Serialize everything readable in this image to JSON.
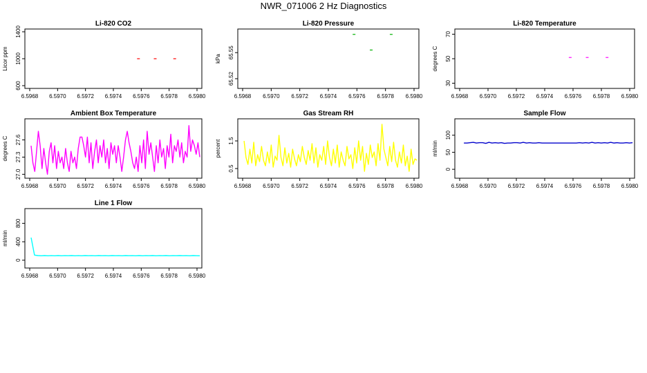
{
  "title": "NWR_071006 2 Hz Diagnostics",
  "chart_data": [
    {
      "type": "scatter",
      "title": "Li-820 CO2",
      "ylabel": "Licor ppm",
      "xticks": [
        "6.5968",
        "6.5970",
        "6.5972",
        "6.5974",
        "6.5976",
        "6.5978",
        "6.5980"
      ],
      "yticks": [
        "600",
        "1000",
        "1400"
      ],
      "xlim": [
        6.5968,
        6.598
      ],
      "ylim": [
        600,
        1400
      ],
      "color": "#ff0000",
      "series": [
        {
          "x": [
            6.59758,
            6.5977,
            6.59784
          ],
          "y": [
            1000,
            1000,
            1000
          ]
        }
      ]
    },
    {
      "type": "scatter",
      "title": "Li-820 Pressure",
      "ylabel": "kPa",
      "xticks": [
        "6.5968",
        "6.5970",
        "6.5972",
        "6.5974",
        "6.5976",
        "6.5978",
        "6.5980"
      ],
      "yticks": [
        "65.52",
        "65.55"
      ],
      "xlim": [
        6.5968,
        6.598
      ],
      "ylim": [
        65.512,
        65.574
      ],
      "color": "#00b000",
      "series": [
        {
          "x": [
            6.59758,
            6.5977,
            6.59784
          ],
          "y": [
            65.571,
            65.553,
            65.571
          ]
        }
      ]
    },
    {
      "type": "scatter",
      "title": "Li-820 Temperature",
      "ylabel": "degrees C",
      "xticks": [
        "6.5968",
        "6.5970",
        "6.5972",
        "6.5974",
        "6.5976",
        "6.5978",
        "6.5980"
      ],
      "yticks": [
        "30",
        "50",
        "70"
      ],
      "xlim": [
        6.5968,
        6.598
      ],
      "ylim": [
        28,
        72
      ],
      "color": "#ff00ff",
      "series": [
        {
          "x": [
            6.59758,
            6.5977,
            6.59784
          ],
          "y": [
            51,
            51,
            51
          ]
        }
      ]
    },
    {
      "type": "line",
      "title": "Ambient Box Temperature",
      "ylabel": "degrees C",
      "xticks": [
        "6.5968",
        "6.5970",
        "6.5972",
        "6.5974",
        "6.5976",
        "6.5978",
        "6.5980"
      ],
      "yticks": [
        "27.0",
        "27.3",
        "27.6"
      ],
      "xlim": [
        6.5968,
        6.598
      ],
      "ylim": [
        26.98,
        27.92
      ],
      "color": "#ff00ff",
      "series": [
        {
          "x_start": 6.59681,
          "x_end": 6.59802,
          "values": [
            27.5,
            27.2,
            27.05,
            27.4,
            27.75,
            27.5,
            27.1,
            27.45,
            27.2,
            27.0,
            27.4,
            27.55,
            27.2,
            27.5,
            27.1,
            27.4,
            27.2,
            27.3,
            27.1,
            27.45,
            27.2,
            27.05,
            27.4,
            27.2,
            27.3,
            27.1,
            27.45,
            27.65,
            27.65,
            27.5,
            27.3,
            27.65,
            27.2,
            27.55,
            27.1,
            27.4,
            27.6,
            27.2,
            27.5,
            27.3,
            27.6,
            27.2,
            27.45,
            27.1,
            27.55,
            27.35,
            27.5,
            27.2,
            27.5,
            27.3,
            27.05,
            27.3,
            27.6,
            27.75,
            27.55,
            27.4,
            27.2,
            27.1,
            27.3,
            27.05,
            27.5,
            27.2,
            27.6,
            27.1,
            27.75,
            27.35,
            27.55,
            27.3,
            27.05,
            27.5,
            27.2,
            27.6,
            27.3,
            27.45,
            27.1,
            27.5,
            27.3,
            27.7,
            27.2,
            27.5,
            27.4,
            27.6,
            27.3,
            27.55,
            27.2,
            27.4,
            27.3,
            27.85,
            27.4,
            27.6,
            27.5,
            27.35,
            27.55,
            27.3
          ]
        }
      ]
    },
    {
      "type": "line",
      "title": "Gas Stream RH",
      "ylabel": "percent",
      "xticks": [
        "6.5968",
        "6.5970",
        "6.5972",
        "6.5974",
        "6.5976",
        "6.5978",
        "6.5980"
      ],
      "yticks": [
        "0.5",
        "1.5"
      ],
      "xlim": [
        6.5968,
        6.598
      ],
      "ylim": [
        0.25,
        2.2
      ],
      "color": "#ffff00",
      "series": [
        {
          "x_start": 6.59681,
          "x_end": 6.59802,
          "values": [
            1.5,
            0.9,
            0.65,
            1.2,
            0.7,
            1.45,
            0.6,
            1.0,
            0.75,
            1.3,
            0.8,
            0.6,
            1.1,
            0.7,
            1.35,
            0.55,
            0.95,
            0.8,
            1.7,
            0.9,
            0.6,
            1.25,
            0.7,
            1.05,
            0.55,
            1.2,
            0.85,
            0.6,
            1.0,
            0.75,
            1.3,
            0.9,
            0.65,
            1.15,
            0.8,
            1.4,
            0.7,
            1.25,
            0.55,
            1.0,
            0.8,
            1.3,
            0.65,
            1.5,
            0.9,
            0.6,
            1.2,
            0.7,
            1.35,
            0.55,
            1.1,
            0.8,
            0.6,
            1.3,
            0.85,
            1.0,
            0.5,
            1.25,
            0.7,
            1.5,
            0.8,
            1.3,
            0.4,
            1.05,
            0.65,
            1.35,
            0.9,
            1.1,
            0.6,
            1.4,
            0.8,
            2.1,
            1.2,
            0.9,
            0.6,
            1.3,
            0.75,
            1.45,
            0.8,
            0.55,
            1.1,
            0.7,
            1.35,
            0.6,
            0.95,
            0.4,
            1.2,
            0.65,
            0.85,
            0.8
          ]
        }
      ]
    },
    {
      "type": "line",
      "title": "Sample Flow",
      "ylabel": "ml/min",
      "xticks": [
        "6.5968",
        "6.5970",
        "6.5972",
        "6.5974",
        "6.5976",
        "6.5978",
        "6.5980"
      ],
      "yticks": [
        "0",
        "50",
        "100"
      ],
      "xlim": [
        6.5968,
        6.598
      ],
      "ylim": [
        -18,
        140
      ],
      "color": "#0000cc",
      "series": [
        {
          "x_start": 6.59683,
          "x_end": 6.59802,
          "values": [
            77,
            77,
            78,
            79,
            77,
            78,
            78,
            76,
            79,
            77,
            78,
            77,
            78,
            76,
            77,
            77,
            78,
            78,
            77,
            79,
            77,
            78,
            77,
            77,
            78,
            77,
            77,
            77,
            77,
            77,
            77,
            77,
            77,
            77,
            77,
            77,
            77,
            78,
            77,
            78,
            77,
            79,
            77,
            78,
            77,
            78,
            77,
            79,
            77,
            78,
            77,
            77,
            78,
            77,
            78
          ]
        }
      ]
    },
    {
      "type": "line",
      "title": "Line 1 Flow",
      "ylabel": "ml/min",
      "xticks": [
        "6.5968",
        "6.5970",
        "6.5972",
        "6.5974",
        "6.5976",
        "6.5978",
        "6.5980"
      ],
      "yticks": [
        "0",
        "400",
        "800"
      ],
      "xlim": [
        6.5968,
        6.598
      ],
      "ylim": [
        -110,
        1060
      ],
      "color": "#00ffff",
      "series": [
        {
          "x_start": 6.59681,
          "x_end": 6.59802,
          "values": [
            490,
            110,
            100,
            95,
            100,
            95,
            98,
            95,
            100,
            96,
            98,
            97,
            100,
            96,
            98,
            95,
            100,
            97,
            99,
            96,
            100,
            97,
            98,
            96,
            100,
            97,
            99,
            95,
            100,
            97,
            98,
            96,
            100,
            96,
            98,
            97,
            100,
            95,
            99,
            97,
            100,
            96,
            98,
            97,
            100,
            97,
            98,
            96,
            100,
            97,
            95
          ]
        }
      ]
    }
  ]
}
